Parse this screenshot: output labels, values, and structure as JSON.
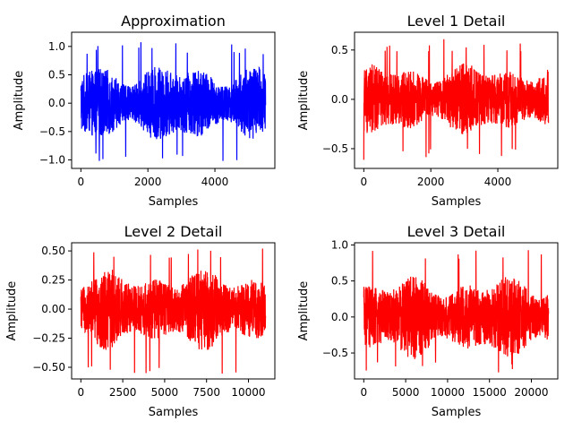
{
  "chart_data": [
    {
      "type": "line",
      "title": "Approximation",
      "xlabel": "Samples",
      "ylabel": "Amplitude",
      "color": "#0000ff",
      "n_samples": 5513,
      "xlim": [
        -276,
        5789
      ],
      "ylim": [
        -1.15,
        1.25
      ],
      "xticks": [
        0,
        2000,
        4000
      ],
      "xtick_labels": [
        "0",
        "2000",
        "4000"
      ],
      "yticks": [
        -1.0,
        -0.5,
        0.0,
        0.5,
        1.0
      ],
      "ytick_labels": [
        "−1.0",
        "−0.5",
        "0.0",
        "0.5",
        "1.0"
      ],
      "series": [
        {
          "values": {
            "min": -1.05,
            "max": 1.08,
            "typical_envelope": 0.6
          }
        }
      ]
    },
    {
      "type": "line",
      "title": "Level 1 Detail",
      "xlabel": "Samples",
      "ylabel": "Amplitude",
      "color": "#ff0000",
      "n_samples": 5513,
      "xlim": [
        -276,
        5789
      ],
      "ylim": [
        -0.7,
        0.68
      ],
      "xticks": [
        0,
        2000,
        4000
      ],
      "xtick_labels": [
        "0",
        "2000",
        "4000"
      ],
      "yticks": [
        -0.5,
        0.0,
        0.5
      ],
      "ytick_labels": [
        "−0.5",
        "0.0",
        "0.5"
      ],
      "series": [
        {
          "values": {
            "min": -0.62,
            "max": 0.61,
            "typical_envelope": 0.32
          }
        }
      ]
    },
    {
      "type": "line",
      "title": "Level 2 Detail",
      "xlabel": "Samples",
      "ylabel": "Amplitude",
      "color": "#ff0000",
      "n_samples": 11025,
      "xlim": [
        -551,
        11576
      ],
      "ylim": [
        -0.6,
        0.57
      ],
      "xticks": [
        0,
        2500,
        5000,
        7500,
        10000
      ],
      "xtick_labels": [
        "0",
        "2500",
        "5000",
        "7500",
        "10000"
      ],
      "yticks": [
        -0.5,
        -0.25,
        0.0,
        0.25,
        0.5
      ],
      "ytick_labels": [
        "−0.50",
        "−0.25",
        "0.00",
        "0.25",
        "0.50"
      ],
      "series": [
        {
          "values": {
            "min": -0.56,
            "max": 0.52,
            "typical_envelope": 0.3
          }
        }
      ]
    },
    {
      "type": "line",
      "title": "Level 3 Detail",
      "xlabel": "Samples",
      "ylabel": "Amplitude",
      "color": "#ff0000",
      "n_samples": 22050,
      "xlim": [
        -1102,
        23152
      ],
      "ylim": [
        -0.86,
        1.03
      ],
      "xticks": [
        0,
        5000,
        10000,
        15000,
        20000
      ],
      "xtick_labels": [
        "0",
        "5000",
        "10000",
        "15000",
        "20000"
      ],
      "yticks": [
        -0.5,
        0.0,
        0.5,
        1.0
      ],
      "ytick_labels": [
        "−0.5",
        "0.0",
        "0.5",
        "1.0"
      ],
      "series": [
        {
          "values": {
            "min": -0.78,
            "max": 0.93,
            "typical_envelope": 0.5
          }
        }
      ]
    }
  ]
}
